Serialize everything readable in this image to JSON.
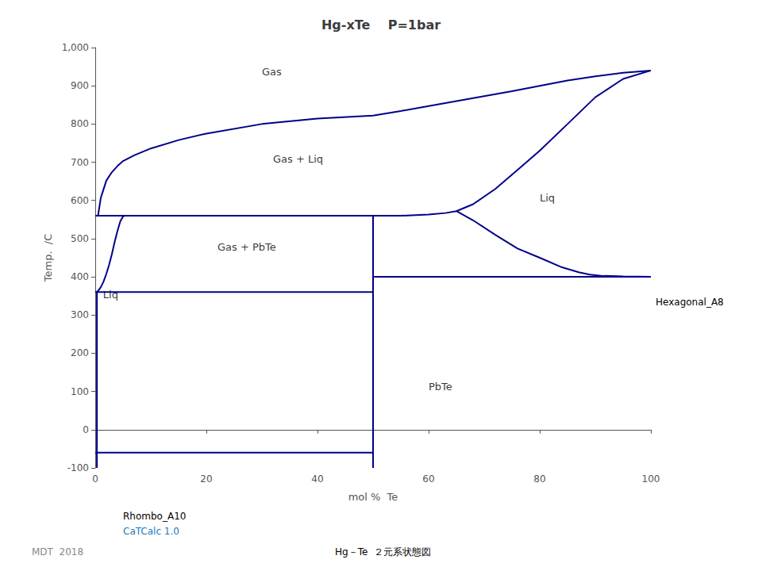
{
  "chart_data": {
    "type": "line",
    "title": "Hg-xTe    P=1bar",
    "xlabel": "mol %  Te",
    "ylabel": "Temp.  /C",
    "xlim": [
      0,
      100
    ],
    "ylim": [
      -100,
      1000
    ],
    "xticks": [
      0,
      20,
      40,
      60,
      80,
      100
    ],
    "yticks": [
      -100,
      0,
      100,
      200,
      300,
      400,
      500,
      600,
      700,
      800,
      900,
      1000
    ],
    "grid": false,
    "series": [
      {
        "color": "#00008B",
        "x": [
          0.3,
          0.5,
          1,
          2,
          3,
          4,
          5,
          7,
          10,
          15,
          20,
          30,
          40,
          50,
          55,
          60,
          65,
          70,
          75,
          80,
          85,
          90,
          95,
          100
        ],
        "values": [
          560,
          560,
          607,
          652,
          674,
          690,
          703,
          718,
          736,
          758,
          775,
          800,
          814,
          822,
          834,
          847,
          860,
          873,
          886,
          900,
          914,
          925,
          934,
          940
        ]
      },
      {
        "color": "#00008B",
        "x": [
          50,
          55,
          60,
          63,
          65,
          68,
          72,
          76,
          80,
          85,
          90,
          95,
          100
        ],
        "values": [
          560,
          560,
          563,
          567,
          572,
          590,
          630,
          680,
          730,
          800,
          870,
          918,
          940
        ]
      },
      {
        "color": "#00008B",
        "x": [
          65,
          68,
          72,
          76,
          80,
          84,
          87,
          89,
          91,
          95,
          100
        ],
        "values": [
          572,
          548,
          510,
          474,
          450,
          425,
          412,
          406,
          403,
          401,
          400
        ]
      },
      {
        "color": "#00008B",
        "x": [
          0,
          0.2,
          0.5,
          1.0,
          1.5,
          2.0,
          2.5,
          3.0,
          3.5,
          4.0,
          4.5,
          5.0,
          5.3
        ],
        "values": [
          360,
          360,
          363,
          373,
          388,
          408,
          432,
          460,
          492,
          520,
          545,
          558,
          560
        ]
      },
      {
        "color": "#00008B",
        "x": [
          0,
          50
        ],
        "values": [
          560,
          560
        ]
      },
      {
        "color": "#00008B",
        "x": [
          0,
          50
        ],
        "values": [
          360,
          360
        ]
      },
      {
        "color": "#00008B",
        "x": [
          50,
          100
        ],
        "values": [
          400,
          400
        ]
      },
      {
        "color": "#00008B",
        "x": [
          0,
          50
        ],
        "values": [
          -60,
          -60
        ]
      },
      {
        "color": "#00008B",
        "x": [
          50,
          50
        ],
        "values": [
          -100,
          560
        ]
      },
      {
        "color": "#00008B",
        "x": [
          0.3,
          0.3
        ],
        "values": [
          -100,
          360
        ]
      }
    ],
    "annotations": [
      {
        "text": "Gas",
        "x": 30,
        "y": 920
      },
      {
        "text": "Gas + Liq",
        "x": 32,
        "y": 690
      },
      {
        "text": "Liq",
        "x": 80,
        "y": 590
      },
      {
        "text": "Gas + PbTe",
        "x": 22,
        "y": 460
      },
      {
        "text": "PbTe",
        "x": 60,
        "y": 95
      },
      {
        "text": "Liq",
        "x": 1.4,
        "y": 335
      },
      {
        "text": "Rhombo_A10"
      },
      {
        "text": "Hexagonal_A8"
      },
      {
        "text": "CaTCalc 1.0",
        "color": "#1a7abd"
      },
      {
        "text": "MDT  2018",
        "color": "#888888"
      },
      {
        "text": "Hg－Te  ２元系状態図"
      }
    ]
  }
}
